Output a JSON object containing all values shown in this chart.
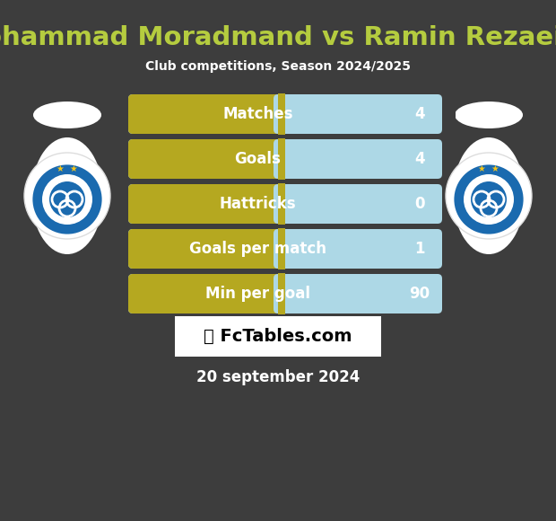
{
  "title": "Mohammad Moradmand vs Ramin Rezaeian",
  "subtitle": "Club competitions, Season 2024/2025",
  "title_color": "#b5cc3f",
  "subtitle_color": "#ffffff",
  "bg_color": "#3d3d3d",
  "bar_left_color": "#b5a820",
  "bar_right_color": "#add8e6",
  "bar_text_color": "#ffffff",
  "value_text_color": "#ffffff",
  "date_text": "20 september 2024",
  "watermark_text": "📊 FcTables.com",
  "stats": [
    {
      "label": "Matches",
      "value": "4"
    },
    {
      "label": "Goals",
      "value": "4"
    },
    {
      "label": "Hattricks",
      "value": "0"
    },
    {
      "label": "Goals per match",
      "value": "1"
    },
    {
      "label": "Min per goal",
      "value": "90"
    }
  ],
  "figsize": [
    6.2,
    5.8
  ],
  "dpi": 100
}
